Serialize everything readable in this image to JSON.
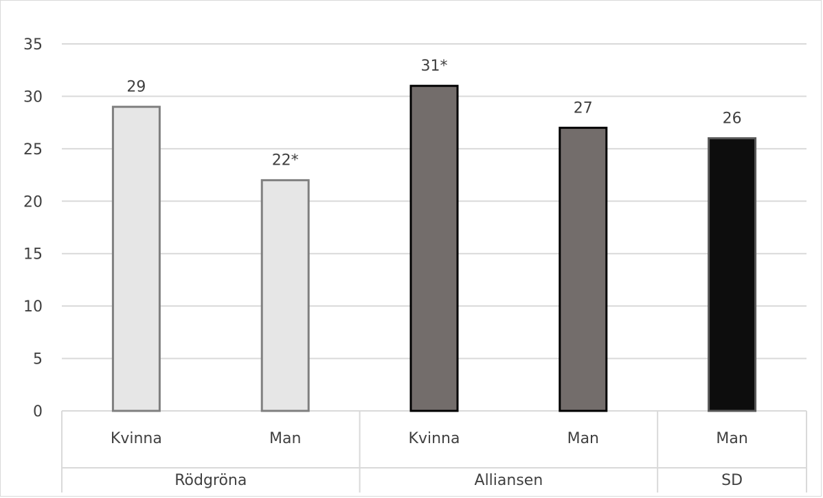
{
  "chart_data": {
    "type": "bar",
    "title": "",
    "xlabel": "",
    "ylabel": "",
    "ylim": [
      0,
      35
    ],
    "yticks": [
      0,
      5,
      10,
      15,
      20,
      25,
      30,
      35
    ],
    "grid": true,
    "legend": "none",
    "groups": [
      {
        "name": "Rödgröna",
        "bars": [
          {
            "category": "Kvinna",
            "value": 29,
            "label": "29",
            "color": "#e6e6e6",
            "edge": "#7f7f7f"
          },
          {
            "category": "Man",
            "value": 22,
            "label": "22*",
            "color": "#e6e6e6",
            "edge": "#7f7f7f"
          }
        ]
      },
      {
        "name": "Alliansen",
        "bars": [
          {
            "category": "Kvinna",
            "value": 31,
            "label": "31*",
            "color": "#736d6b",
            "edge": "#000000"
          },
          {
            "category": "Man",
            "value": 27,
            "label": "27",
            "color": "#736d6b",
            "edge": "#000000"
          }
        ]
      },
      {
        "name": "SD",
        "bars": [
          {
            "category": "Man",
            "value": 26,
            "label": "26",
            "color": "#0d0d0d",
            "edge": "#595959"
          }
        ]
      }
    ]
  }
}
